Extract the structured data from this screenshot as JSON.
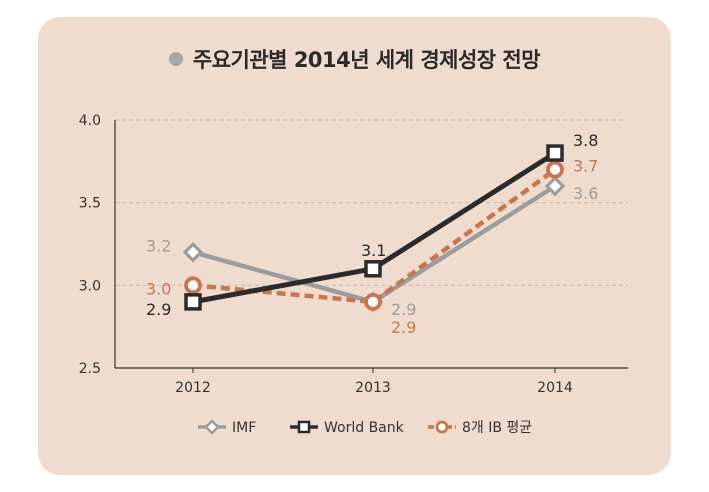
{
  "title": "주요기관별 2014년 세계 경제성장 전망",
  "colors": {
    "background": "#f0dccf",
    "imf": "#9c9c9c",
    "world_bank": "#2b2b2b",
    "ib": "#c6774f"
  },
  "chart_data": {
    "type": "line",
    "title": "주요기관별 2014년 세계 경제성장 전망",
    "xlabel": "",
    "ylabel": "",
    "categories": [
      "2012",
      "2013",
      "2014"
    ],
    "ylim": [
      2.5,
      4.0
    ],
    "yticks": [
      "2.5",
      "3.0",
      "3.5",
      "4.0"
    ],
    "grid": "horizontal dashed",
    "legend": "bottom",
    "series": [
      {
        "name": "IMF",
        "values": [
          3.2,
          2.9,
          3.6
        ],
        "labels": [
          "3.2",
          "2.9",
          "3.6"
        ],
        "marker": "diamond"
      },
      {
        "name": "World Bank",
        "values": [
          2.9,
          3.1,
          3.8
        ],
        "labels": [
          "2.9",
          "3.1",
          "3.8"
        ],
        "marker": "square"
      },
      {
        "name": "8개 IB 평균",
        "values": [
          3.0,
          2.9,
          3.7
        ],
        "labels": [
          "3.0",
          "2.9",
          "3.7"
        ],
        "marker": "circle",
        "dashed": true
      }
    ]
  }
}
